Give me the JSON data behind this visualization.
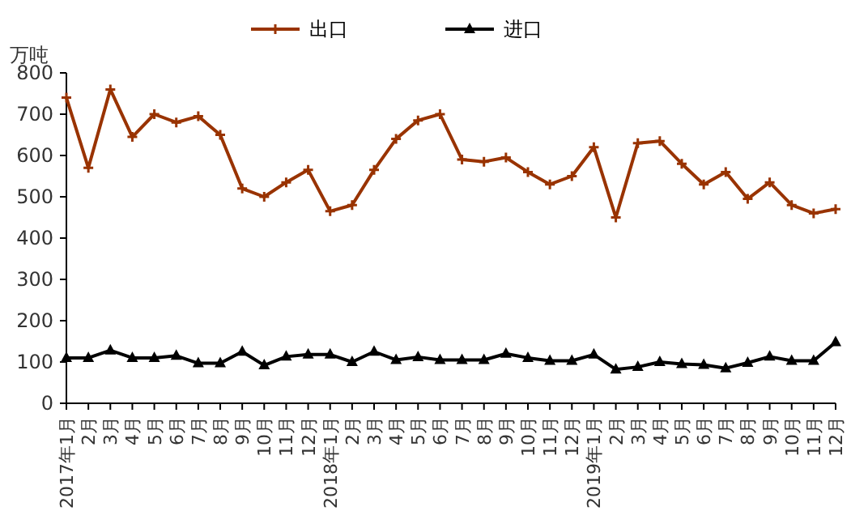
{
  "chart_data": {
    "type": "line",
    "ylabel": "万吨",
    "legend": "top",
    "grid": false,
    "categories": [
      "2017年1月",
      "2月",
      "3月",
      "4月",
      "5月",
      "6月",
      "7月",
      "8月",
      "9月",
      "10月",
      "11月",
      "12月",
      "2018年1月",
      "2月",
      "3月",
      "4月",
      "5月",
      "6月",
      "7月",
      "8月",
      "9月",
      "10月",
      "11月",
      "12月",
      "2019年1月",
      "2月",
      "3月",
      "4月",
      "5月",
      "6月",
      "7月",
      "8月",
      "9月",
      "10月",
      "11月",
      "12月"
    ],
    "ylim": [
      0,
      800
    ],
    "yticks": [
      0,
      100,
      200,
      300,
      400,
      500,
      600,
      700,
      800
    ],
    "series": [
      {
        "name": "出口",
        "color": "#993300",
        "marker": "cross",
        "values": [
          740,
          570,
          760,
          645,
          700,
          680,
          695,
          650,
          520,
          500,
          535,
          565,
          465,
          480,
          565,
          640,
          685,
          700,
          590,
          585,
          595,
          560,
          530,
          550,
          620,
          450,
          630,
          635,
          580,
          530,
          560,
          495,
          535,
          480,
          460,
          470
        ]
      },
      {
        "name": "进口",
        "color": "#000000",
        "marker": "triangle",
        "values": [
          110,
          110,
          128,
          110,
          110,
          115,
          97,
          97,
          125,
          92,
          113,
          118,
          118,
          100,
          125,
          105,
          112,
          105,
          105,
          105,
          120,
          110,
          103,
          103,
          118,
          82,
          88,
          100,
          95,
          93,
          85,
          98,
          113,
          103,
          103,
          148
        ]
      }
    ]
  }
}
